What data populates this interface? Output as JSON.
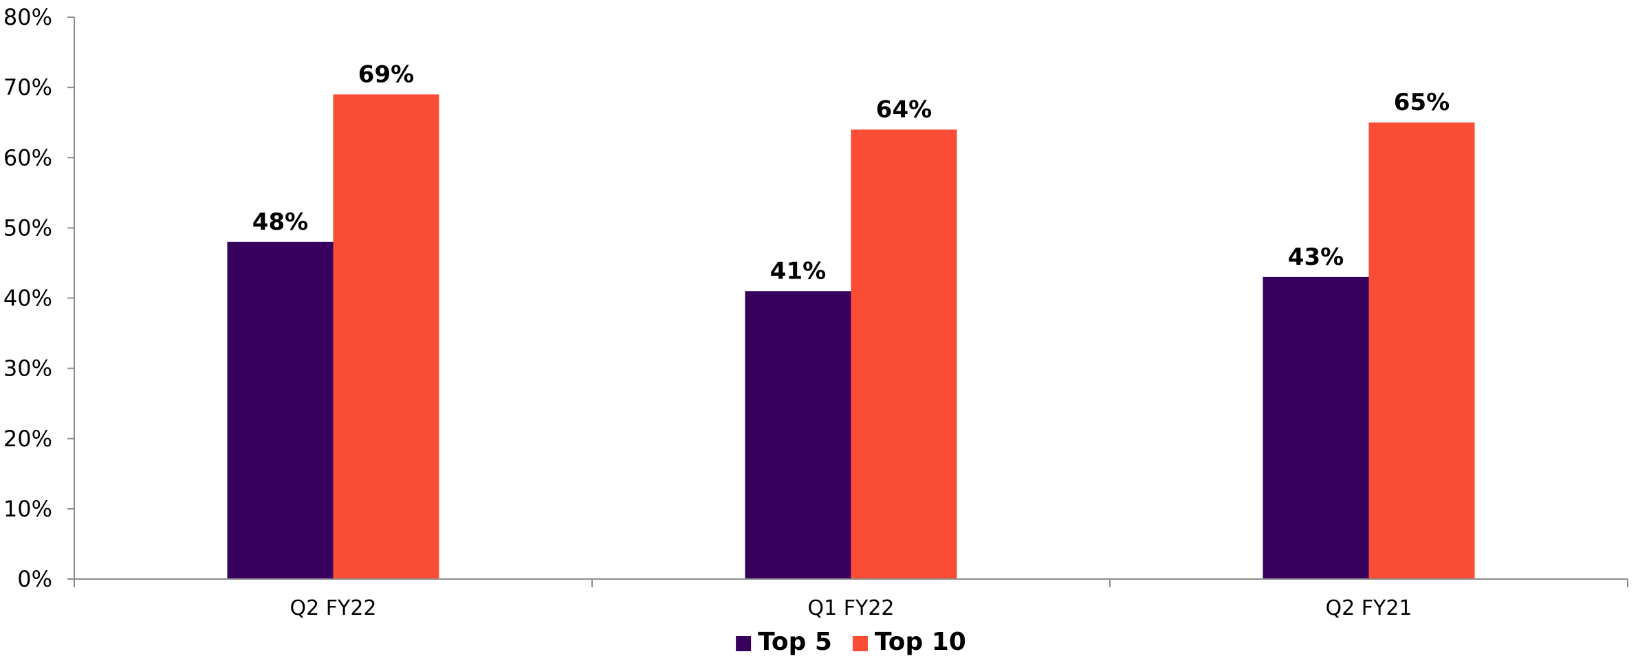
{
  "chart_data": {
    "type": "bar",
    "categories": [
      "Q2 FY22",
      "Q1 FY22",
      "Q2 FY21"
    ],
    "series": [
      {
        "name": "Top 5",
        "values": [
          48,
          41,
          43
        ],
        "color": "#36005C",
        "labels": [
          "48%",
          "41%",
          "43%"
        ]
      },
      {
        "name": "Top 10",
        "values": [
          69,
          64,
          65
        ],
        "color": "#FB4D35",
        "labels": [
          "69%",
          "64%",
          "65%"
        ]
      }
    ],
    "title": "",
    "xlabel": "",
    "ylabel": "",
    "ylim": [
      0,
      80
    ],
    "yticks": [
      0,
      10,
      20,
      30,
      40,
      50,
      60,
      70,
      80
    ],
    "ytick_labels": [
      "0%",
      "10%",
      "20%",
      "30%",
      "40%",
      "50%",
      "60%",
      "70%",
      "80%"
    ],
    "grid": false,
    "legend_position": "bottom"
  },
  "colors": {
    "axis": "#8C8C8C",
    "text": "#000000"
  }
}
